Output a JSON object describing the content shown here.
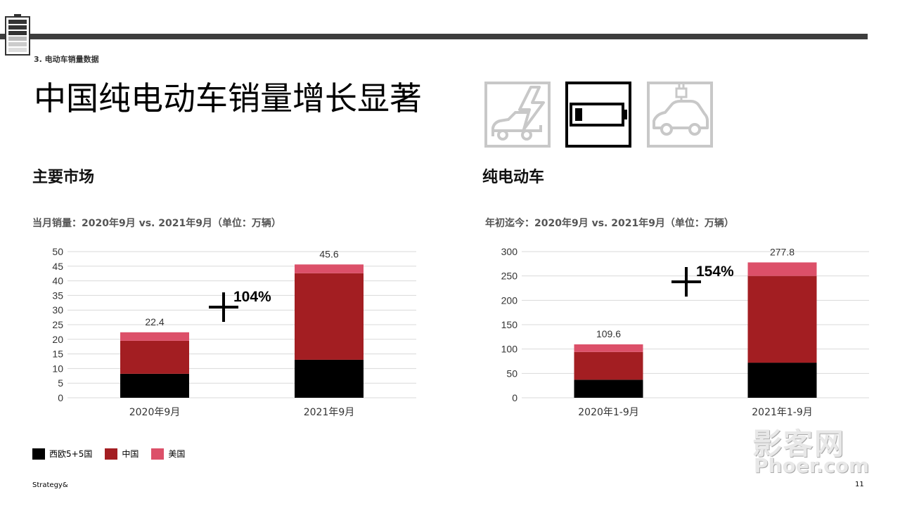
{
  "header": {
    "section_label": "3. 电动车销量数据",
    "title": "中国纯电动车销量增长显著",
    "icons": [
      "lightning-car-icon",
      "battery-icon",
      "ev-plug-car-icon"
    ]
  },
  "left_panel": {
    "heading": "主要市场",
    "subtitle": "当月销量：2020年9月 vs. 2021年9月（单位：万辆）"
  },
  "right_panel": {
    "heading": "纯电动车",
    "subtitle": "年初迄今：2020年9月 vs. 2021年9月（单位：万辆）"
  },
  "legend": {
    "items": [
      {
        "label": "西欧5+5国",
        "color": "#000000"
      },
      {
        "label": "中国",
        "color": "#a31e22"
      },
      {
        "label": "美国",
        "color": "#dc5069"
      }
    ]
  },
  "colors": {
    "western_europe": "#000000",
    "china": "#a31e22",
    "usa": "#dc5069",
    "grid": "#d9d9d9",
    "topbar": "#3d3d3d"
  },
  "chart_data": [
    {
      "type": "bar",
      "stacked": true,
      "categories": [
        "2020年9月",
        "2021年9月"
      ],
      "series": [
        {
          "name": "西欧5+5国",
          "values": [
            8.2,
            13.0
          ]
        },
        {
          "name": "中国",
          "values": [
            11.3,
            29.6
          ]
        },
        {
          "name": "美国",
          "values": [
            2.9,
            3.0
          ]
        }
      ],
      "totals": [
        "22.4",
        "45.6"
      ],
      "ylim": [
        0,
        50
      ],
      "yticks": [
        0,
        5,
        10,
        15,
        20,
        25,
        30,
        35,
        40,
        45,
        50
      ],
      "growth_label": "104%",
      "grid": true
    },
    {
      "type": "bar",
      "stacked": true,
      "categories": [
        "2020年1-9月",
        "2021年1-9月"
      ],
      "series": [
        {
          "name": "西欧5+5国",
          "values": [
            37,
            72
          ]
        },
        {
          "name": "中国",
          "values": [
            57,
            178
          ]
        },
        {
          "name": "美国",
          "values": [
            15.6,
            27.8
          ]
        }
      ],
      "totals": [
        "109.6",
        "277.8"
      ],
      "ylim": [
        0,
        300
      ],
      "yticks": [
        0,
        50,
        100,
        150,
        200,
        250,
        300
      ],
      "growth_label": "154%",
      "grid": true
    }
  ],
  "footer": {
    "source": "Strategy&",
    "page_number": "11"
  },
  "watermark": {
    "line1": "影客网",
    "line2": "Phoer.com"
  }
}
